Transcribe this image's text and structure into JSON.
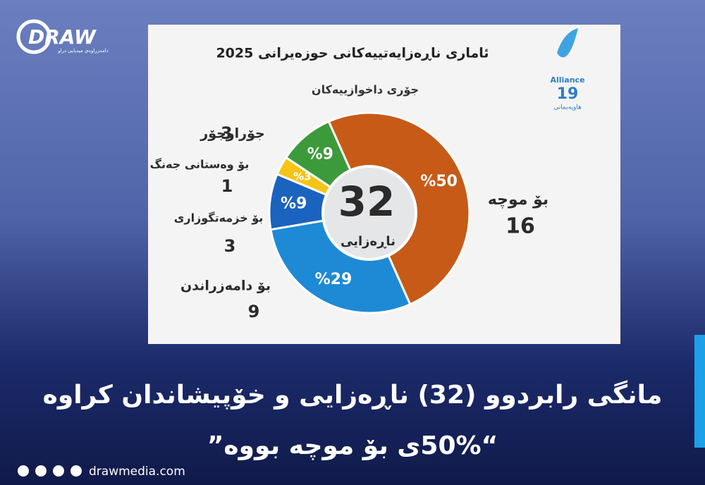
{
  "brand": {
    "logo": "DRAW",
    "tagline": "دامەزراوەی میدیایی دراو",
    "site": "drawmedia.com"
  },
  "partner": {
    "name": "Alliance",
    "number": "19",
    "subtitle": "هاوپەیمانی"
  },
  "chart_data": {
    "type": "pie",
    "donut": true,
    "title": "ئاماری ناڕەزایەتییەکانی حوزەیرانی 2025",
    "subtitle": "جۆری داخوازییەکان",
    "total": 32,
    "total_label": "ناڕەزایی",
    "categories": [
      "بۆ موچە",
      "بۆ دامەزراندن",
      "بۆ خزمەتگوزاری",
      "بۆ وەستانی جەنگ",
      "جۆراوجۆر"
    ],
    "values": [
      50,
      29,
      9,
      3,
      9
    ],
    "value_labels": [
      "%50",
      "%29",
      "%9",
      "%3",
      "%9"
    ],
    "counts": [
      16,
      9,
      3,
      1,
      3
    ],
    "colors": [
      "#c65a16",
      "#1e8ad6",
      "#1a63bf",
      "#f6c417",
      "#3c9a3a"
    ]
  },
  "headline": {
    "line1": "مانگی رابردوو (32) ناڕەزایی و خۆپیشاندان کراوە",
    "line2": "“50%ی بۆ موچە بووە”"
  }
}
